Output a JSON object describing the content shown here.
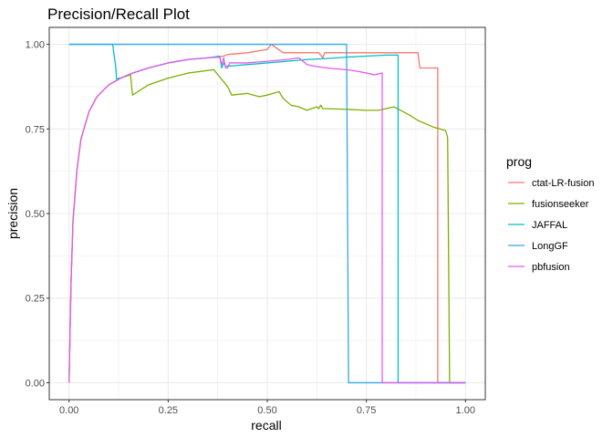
{
  "chart_data": {
    "type": "line",
    "title": "Precision/Recall Plot",
    "xlabel": "recall",
    "ylabel": "precision",
    "xlim": [
      -0.05,
      1.05
    ],
    "ylim": [
      -0.05,
      1.05
    ],
    "xticks": [
      0.0,
      0.25,
      0.5,
      0.75,
      1.0
    ],
    "xtick_labels": [
      "0.00",
      "0.25",
      "0.50",
      "0.75",
      "1.00"
    ],
    "yticks": [
      0.0,
      0.25,
      0.5,
      0.75,
      1.0
    ],
    "ytick_labels": [
      "0.00",
      "0.25",
      "0.50",
      "0.75",
      "1.00"
    ],
    "grid": true,
    "legend": {
      "title": "prog",
      "position": "right"
    },
    "series": [
      {
        "name": "ctat-LR-fusion",
        "color": "#F8766D",
        "x": [
          0,
          0.005,
          0.01,
          0.02,
          0.03,
          0.05,
          0.07,
          0.1,
          0.13,
          0.16,
          0.2,
          0.25,
          0.3,
          0.35,
          0.39,
          0.4,
          0.45,
          0.5,
          0.51,
          0.54,
          0.6,
          0.63,
          0.64,
          0.645,
          0.7,
          0.75,
          0.8,
          0.86,
          0.87,
          0.88,
          0.885,
          0.9,
          0.93,
          0.93,
          1.0
        ],
        "y": [
          0,
          0.3,
          0.48,
          0.63,
          0.72,
          0.8,
          0.845,
          0.88,
          0.9,
          0.915,
          0.93,
          0.945,
          0.955,
          0.96,
          0.965,
          0.97,
          0.975,
          0.985,
          1.0,
          0.975,
          0.975,
          0.975,
          0.96,
          0.975,
          0.975,
          0.975,
          0.975,
          0.975,
          0.975,
          0.975,
          0.93,
          0.93,
          0.93,
          0.0,
          0.0
        ]
      },
      {
        "name": "fusionseeker",
        "color": "#7CAE00",
        "x": [
          0,
          0.005,
          0.01,
          0.02,
          0.03,
          0.05,
          0.07,
          0.1,
          0.13,
          0.155,
          0.16,
          0.18,
          0.2,
          0.25,
          0.3,
          0.365,
          0.4,
          0.41,
          0.45,
          0.48,
          0.5,
          0.53,
          0.54,
          0.56,
          0.58,
          0.6,
          0.625,
          0.63,
          0.635,
          0.64,
          0.7,
          0.75,
          0.78,
          0.82,
          0.86,
          0.88,
          0.92,
          0.95,
          0.955,
          0.96,
          1.0
        ],
        "y": [
          0,
          0.3,
          0.48,
          0.63,
          0.72,
          0.8,
          0.845,
          0.88,
          0.9,
          0.91,
          0.85,
          0.865,
          0.88,
          0.9,
          0.915,
          0.925,
          0.875,
          0.85,
          0.855,
          0.845,
          0.85,
          0.86,
          0.84,
          0.82,
          0.815,
          0.805,
          0.815,
          0.81,
          0.82,
          0.81,
          0.808,
          0.805,
          0.805,
          0.815,
          0.79,
          0.775,
          0.755,
          0.745,
          0.725,
          0.0,
          0.0
        ]
      },
      {
        "name": "JAFFAL",
        "color": "#00BFC4",
        "x": [
          0,
          0.11,
          0.118,
          0.12,
          0.125,
          0.13,
          0.16,
          0.2,
          0.25,
          0.3,
          0.35,
          0.38,
          0.385,
          0.39,
          0.395,
          0.45,
          0.5,
          0.55,
          0.6,
          0.65,
          0.7,
          0.75,
          0.8,
          0.827,
          0.83,
          0.83,
          1.0
        ],
        "y": [
          1.0,
          1.0,
          0.93,
          0.895,
          0.9,
          0.9,
          0.915,
          0.93,
          0.945,
          0.955,
          0.96,
          0.965,
          0.93,
          0.945,
          0.935,
          0.94,
          0.945,
          0.95,
          0.955,
          0.958,
          0.962,
          0.965,
          0.968,
          0.968,
          0.968,
          0.0,
          0.0
        ]
      },
      {
        "name": "LongGF",
        "color": "#2FA8E8",
        "x": [
          0,
          0.7,
          0.705,
          1.0
        ],
        "y": [
          1.0,
          1.0,
          0.0,
          0.0
        ]
      },
      {
        "name": "pbfusion",
        "color": "#E25BEF",
        "x": [
          0,
          0.005,
          0.01,
          0.02,
          0.03,
          0.05,
          0.07,
          0.1,
          0.13,
          0.16,
          0.2,
          0.25,
          0.3,
          0.35,
          0.38,
          0.385,
          0.39,
          0.395,
          0.4,
          0.405,
          0.45,
          0.5,
          0.55,
          0.58,
          0.6,
          0.62,
          0.65,
          0.7,
          0.73,
          0.75,
          0.77,
          0.79,
          0.79,
          1.0
        ],
        "y": [
          0,
          0.3,
          0.48,
          0.63,
          0.72,
          0.8,
          0.845,
          0.88,
          0.9,
          0.915,
          0.93,
          0.945,
          0.955,
          0.96,
          0.962,
          0.94,
          0.96,
          0.93,
          0.93,
          0.945,
          0.945,
          0.95,
          0.955,
          0.96,
          0.94,
          0.935,
          0.93,
          0.925,
          0.92,
          0.915,
          0.91,
          0.915,
          0.0,
          0.0
        ]
      }
    ]
  }
}
